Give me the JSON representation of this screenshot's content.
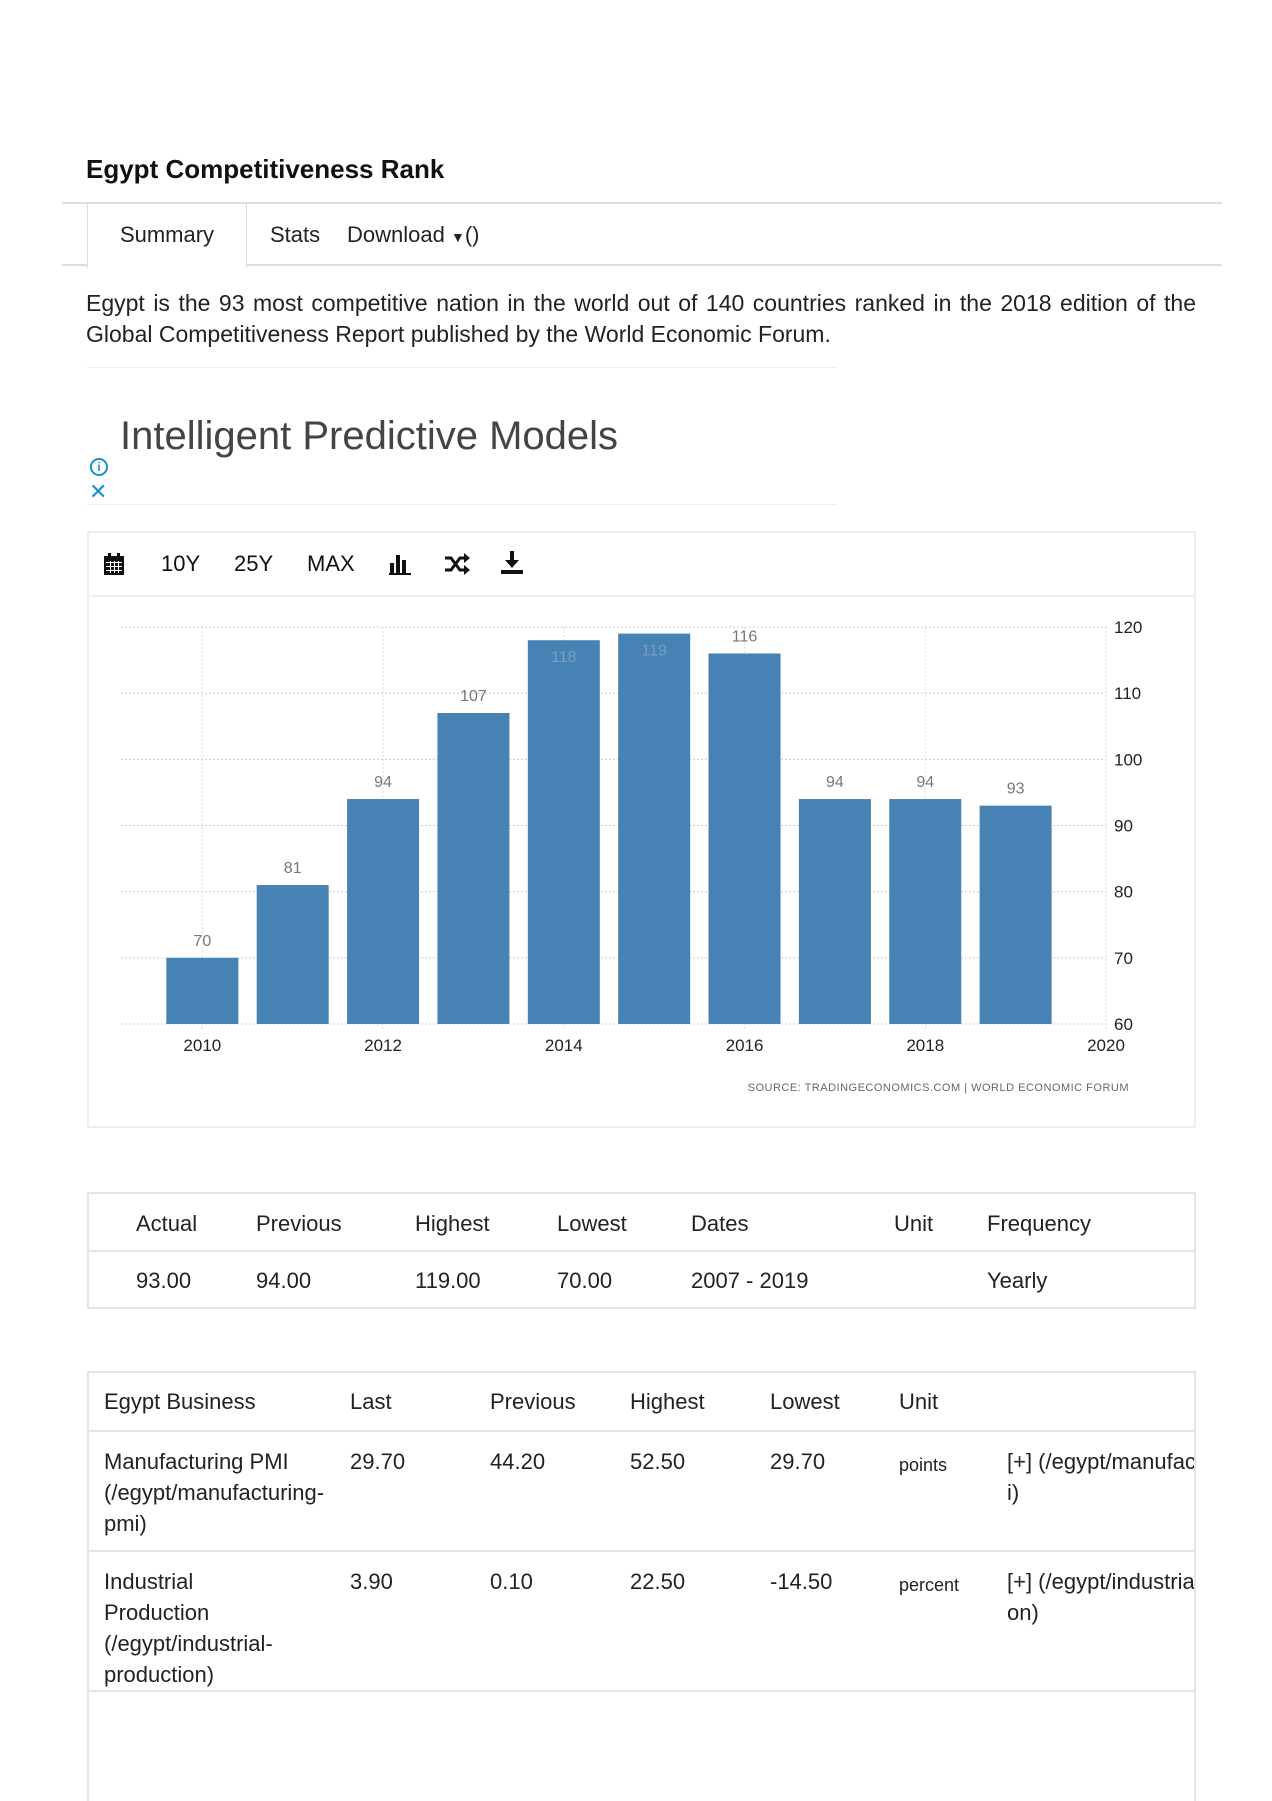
{
  "title": "Egypt Competitiveness Rank",
  "tabs": [
    "Summary",
    "Stats",
    "Download",
    "()"
  ],
  "description": "Egypt is the 93 most competitive nation in the world out of 140 countries ranked in the 2018 edition of the Global Competitiveness Report published by the World Economic Forum.",
  "ad": {
    "title": "Intelligent Predictive Models",
    "info_icon": "info-circle-icon",
    "close_icon": "close-x-icon"
  },
  "toolbar": {
    "items": [
      "10Y",
      "25Y",
      "MAX"
    ],
    "icons": [
      "calendar-icon",
      "bar-chart-icon",
      "shuffle-icon",
      "download-icon"
    ]
  },
  "chart_data": {
    "type": "bar",
    "x": [
      2010,
      2011,
      2012,
      2013,
      2014,
      2015,
      2016,
      2017,
      2018,
      2019
    ],
    "values": [
      70,
      81,
      94,
      107,
      118,
      119,
      116,
      94,
      94,
      93
    ],
    "data_labels": [
      "70",
      "81",
      "94",
      "107",
      "118",
      "119",
      "116",
      "94",
      "94",
      "93"
    ],
    "xticks": [
      "2010",
      "2012",
      "2014",
      "2016",
      "2018",
      "2020"
    ],
    "xlim": [
      2009.1,
      2020
    ],
    "yticks": [
      "60",
      "70",
      "80",
      "90",
      "100",
      "110",
      "120"
    ],
    "ylim": [
      60,
      120
    ],
    "yaxis_side": "right",
    "grid": true,
    "bar_color": "#4682b4",
    "source": "SOURCE: TRADINGECONOMICS.COM | WORLD ECONOMIC FORUM"
  },
  "summary_table": {
    "headers": [
      "Actual",
      "Previous",
      "Highest",
      "Lowest",
      "Dates",
      "Unit",
      "Frequency"
    ],
    "row": [
      "93.00",
      "94.00",
      "119.00",
      "70.00",
      "2007 - 2019",
      "",
      "Yearly"
    ]
  },
  "business_table": {
    "headers": [
      "Egypt Business",
      "Last",
      "Previous",
      "Highest",
      "Lowest",
      "Unit",
      ""
    ],
    "rows": [
      [
        "Manufacturing PMI (/egypt/manufacturing-pmi)",
        "29.70",
        "44.20",
        "52.50",
        "29.70",
        "points",
        "[+] (/egypt/manufacturing-pmi)"
      ],
      [
        "Industrial Production (/egypt/industrial-production)",
        "3.90",
        "0.10",
        "22.50",
        "-14.50",
        "percent",
        "[+] (/egypt/industrial-production)"
      ]
    ]
  }
}
